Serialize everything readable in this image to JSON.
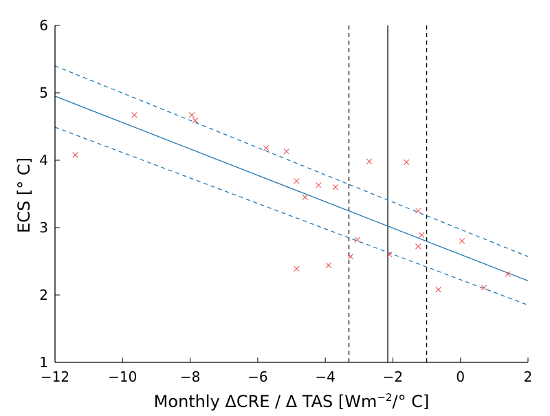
{
  "chart_data": {
    "type": "scatter",
    "title": "",
    "xlabel_prefix": "Monthly ΔCRE / Δ TAS [Wm",
    "xlabel_sup": "−2",
    "xlabel_suffix": "/° C]",
    "ylabel": "ECS [° C]",
    "xlim": [
      -12,
      2
    ],
    "ylim": [
      1,
      6
    ],
    "xticks": [
      {
        "value": -12,
        "label": "−12"
      },
      {
        "value": -10,
        "label": "−10"
      },
      {
        "value": -8,
        "label": "−8"
      },
      {
        "value": -6,
        "label": "−6"
      },
      {
        "value": -4,
        "label": "−4"
      },
      {
        "value": -2,
        "label": "−2"
      },
      {
        "value": 0,
        "label": "0"
      },
      {
        "value": 2,
        "label": "2"
      }
    ],
    "yticks": [
      {
        "value": 1,
        "label": "1"
      },
      {
        "value": 2,
        "label": "2"
      },
      {
        "value": 3,
        "label": "3"
      },
      {
        "value": 4,
        "label": "4"
      },
      {
        "value": 5,
        "label": "5"
      },
      {
        "value": 6,
        "label": "6"
      }
    ],
    "grid": false,
    "points": [
      {
        "x": -11.4,
        "y": 4.08
      },
      {
        "x": -9.65,
        "y": 4.67
      },
      {
        "x": -7.95,
        "y": 4.67
      },
      {
        "x": -7.85,
        "y": 4.59
      },
      {
        "x": -5.75,
        "y": 4.18
      },
      {
        "x": -5.15,
        "y": 4.13
      },
      {
        "x": -4.85,
        "y": 3.69
      },
      {
        "x": -4.85,
        "y": 2.39
      },
      {
        "x": -4.6,
        "y": 3.45
      },
      {
        "x": -4.2,
        "y": 3.63
      },
      {
        "x": -3.9,
        "y": 2.44
      },
      {
        "x": -3.7,
        "y": 3.6
      },
      {
        "x": -3.25,
        "y": 2.57
      },
      {
        "x": -3.05,
        "y": 2.82
      },
      {
        "x": -2.7,
        "y": 3.98
      },
      {
        "x": -2.1,
        "y": 2.6
      },
      {
        "x": -1.6,
        "y": 3.97
      },
      {
        "x": -1.25,
        "y": 3.25
      },
      {
        "x": -1.15,
        "y": 2.89
      },
      {
        "x": -1.25,
        "y": 2.72
      },
      {
        "x": -0.65,
        "y": 2.08
      },
      {
        "x": 0.05,
        "y": 2.8
      },
      {
        "x": 0.7,
        "y": 2.11
      },
      {
        "x": 1.4,
        "y": 2.31
      }
    ],
    "fit_line": {
      "x": [
        -12,
        2
      ],
      "y": [
        4.95,
        2.21
      ]
    },
    "confidence_upper": {
      "x": [
        -12,
        2
      ],
      "y": [
        5.4,
        2.57
      ]
    },
    "confidence_lower": {
      "x": [
        -12,
        2
      ],
      "y": [
        4.49,
        1.85
      ]
    },
    "vlines": [
      {
        "x": -2.15,
        "style": "solid"
      },
      {
        "x": -3.3,
        "style": "dashed"
      },
      {
        "x": -1.0,
        "style": "dashed"
      }
    ],
    "colors": {
      "points": "#e8474b",
      "fit": "#1f77b4",
      "vlines": "#000000",
      "axes": "#000000"
    }
  }
}
